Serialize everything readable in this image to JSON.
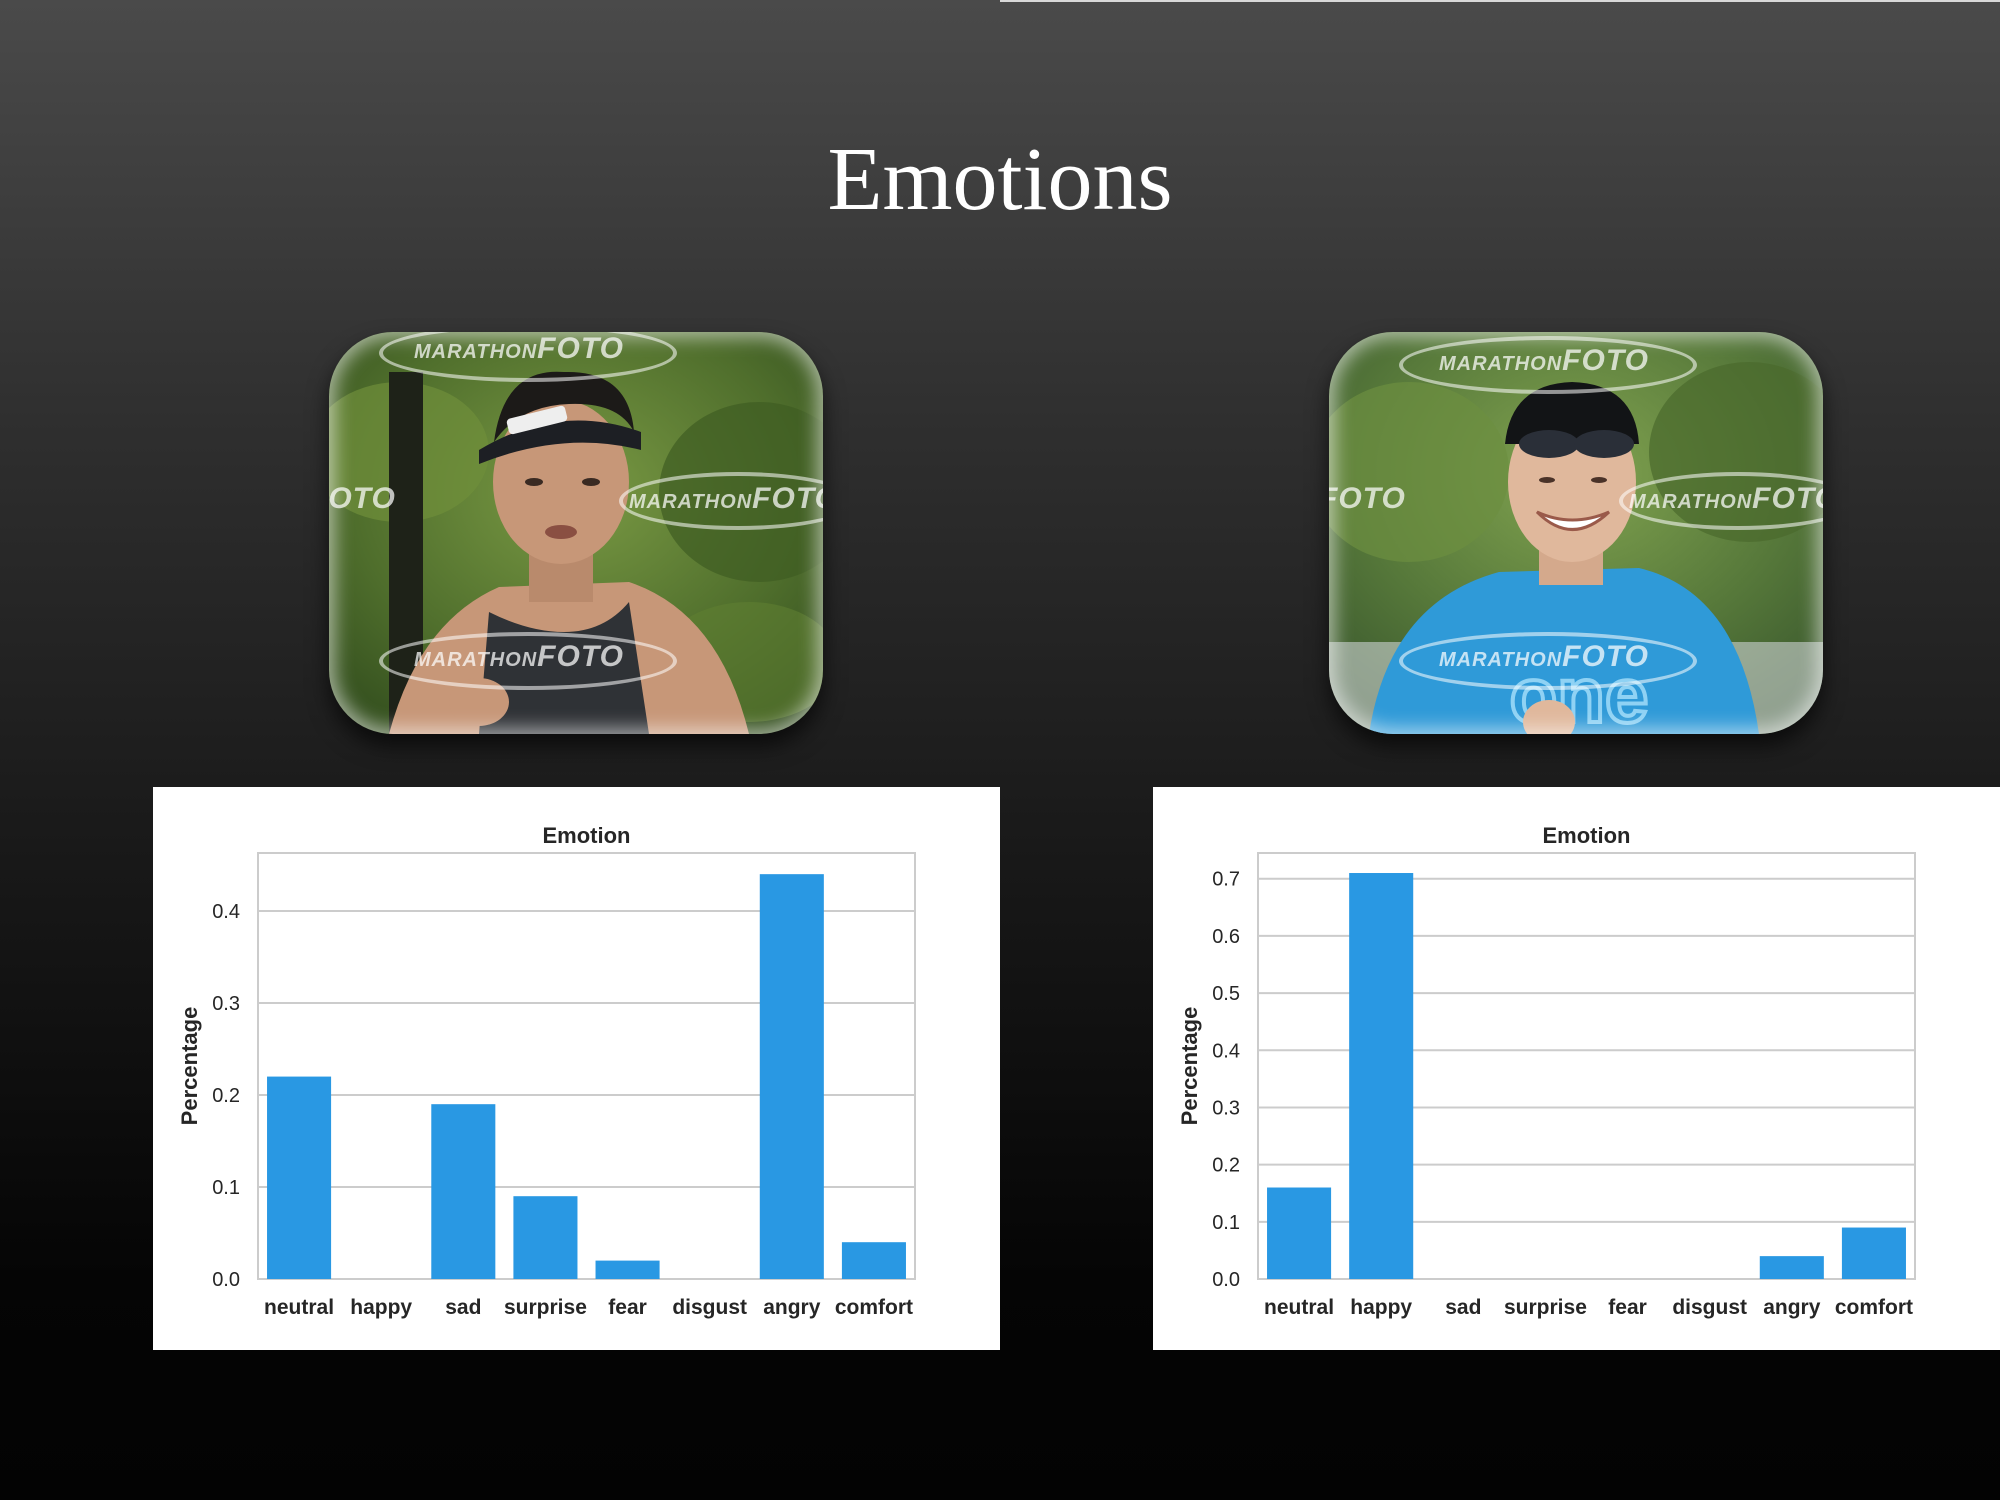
{
  "slide": {
    "title": "Emotions"
  },
  "photos": [
    {
      "watermark_small": "MARATHON",
      "watermark_large": "FOTO",
      "colors": {
        "background": "#4f6e2c",
        "shirt": "#2f3236",
        "skin": "#c79778",
        "cap": "#1d1f24"
      }
    },
    {
      "watermark_small": "MARATHON",
      "watermark_large": "FOTO",
      "shirt_text": "one",
      "colors": {
        "background": "#56783a",
        "shirt": "#2f9ad8",
        "skin": "#e0b89c",
        "cap": "#121416"
      }
    }
  ],
  "theme": {
    "bar_color": "#2998e3",
    "grid_color": "#cccccc",
    "axis_text_color": "#262626"
  },
  "chart_data": [
    {
      "type": "bar",
      "title": "Emotion",
      "xlabel": "",
      "ylabel": "Percentage",
      "categories": [
        "neutral",
        "happy",
        "sad",
        "surprise",
        "fear",
        "disgust",
        "angry",
        "comfort"
      ],
      "values": [
        0.22,
        0.0,
        0.19,
        0.09,
        0.02,
        0.0,
        0.44,
        0.04
      ],
      "yticks": [
        0.0,
        0.1,
        0.2,
        0.3,
        0.4
      ],
      "ylim": [
        0,
        0.463
      ],
      "grid": true,
      "legend": false
    },
    {
      "type": "bar",
      "title": "Emotion",
      "xlabel": "",
      "ylabel": "Percentage",
      "categories": [
        "neutral",
        "happy",
        "sad",
        "surprise",
        "fear",
        "disgust",
        "angry",
        "comfort"
      ],
      "values": [
        0.16,
        0.71,
        0.0,
        0.0,
        0.0,
        0.0,
        0.04,
        0.09
      ],
      "yticks": [
        0.0,
        0.1,
        0.2,
        0.3,
        0.4,
        0.5,
        0.6,
        0.7
      ],
      "ylim": [
        0,
        0.745
      ],
      "grid": true,
      "legend": false
    }
  ]
}
